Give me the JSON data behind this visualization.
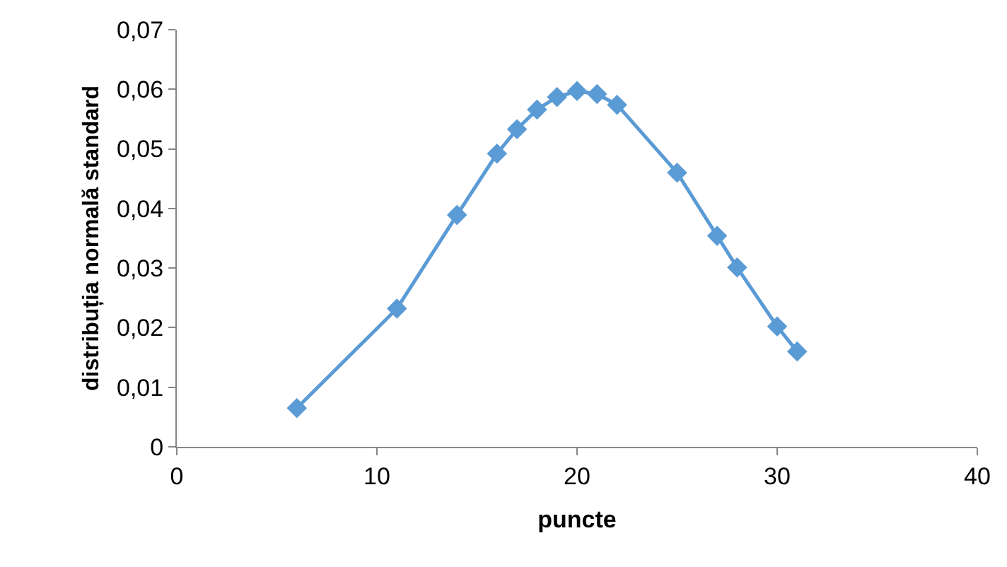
{
  "chart_data": {
    "type": "line",
    "xlabel": "puncte",
    "ylabel": "distribuția normală standard",
    "x": [
      6,
      11,
      14,
      16,
      17,
      18,
      19,
      20,
      21,
      22,
      25,
      27,
      28,
      30,
      31
    ],
    "series": [
      {
        "color": "#5b9bd5",
        "values": [
          0.0065,
          0.0232,
          0.0389,
          0.0492,
          0.0533,
          0.0566,
          0.0587,
          0.0597,
          0.0592,
          0.0574,
          0.046,
          0.0354,
          0.0301,
          0.0202,
          0.016
        ]
      }
    ],
    "xlim": [
      0,
      40
    ],
    "xticks": [
      0,
      10,
      20,
      30,
      40
    ],
    "ylim": [
      0,
      0.07
    ],
    "yticks": [
      0,
      {
        "value": 0.01,
        "label": "0,01"
      },
      {
        "value": 0.02,
        "label": "0,02"
      },
      {
        "value": 0.03,
        "label": "0,03"
      },
      {
        "value": 0.04,
        "label": "0,04"
      },
      {
        "value": 0.05,
        "label": "0,05"
      },
      {
        "value": 0.06,
        "label": "0,06"
      },
      {
        "value": 0.07,
        "label": "0,07"
      }
    ],
    "grid": false,
    "marker": "diamond",
    "line_style": "solid"
  }
}
